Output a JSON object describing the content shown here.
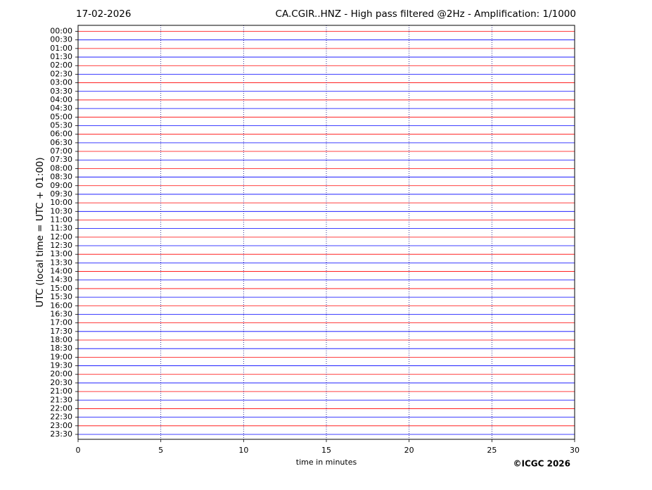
{
  "chart_data": {
    "type": "helicorder",
    "title": "CA.CGIR..HNZ - High pass filtered @2Hz - Amplification: 1/1000",
    "subtitle": "17-02-2026",
    "x_label": "time in minutes",
    "y_label": "UTC (local time = UTC + 01:00)",
    "copyright": "©ICGC 2026",
    "categories": [
      "00:00",
      "00:30",
      "01:00",
      "01:30",
      "02:00",
      "02:30",
      "03:00",
      "03:30",
      "04:00",
      "04:30",
      "05:00",
      "05:30",
      "06:00",
      "06:30",
      "07:00",
      "07:30",
      "08:00",
      "08:30",
      "09:00",
      "09:30",
      "10:00",
      "10:30",
      "11:00",
      "11:30",
      "12:00",
      "12:30",
      "13:00",
      "13:30",
      "14:00",
      "14:30",
      "15:00",
      "15:30",
      "16:00",
      "16:30",
      "17:00",
      "17:30",
      "18:00",
      "18:30",
      "19:00",
      "19:30",
      "20:00",
      "20:30",
      "21:00",
      "21:30",
      "22:00",
      "22:30",
      "23:00",
      "23:30"
    ],
    "colors": [
      "#ff0000",
      "#0000ff"
    ],
    "xlim": [
      0,
      30
    ],
    "xticks": [
      0,
      5,
      10,
      15,
      20,
      25,
      30
    ],
    "grid": true
  }
}
